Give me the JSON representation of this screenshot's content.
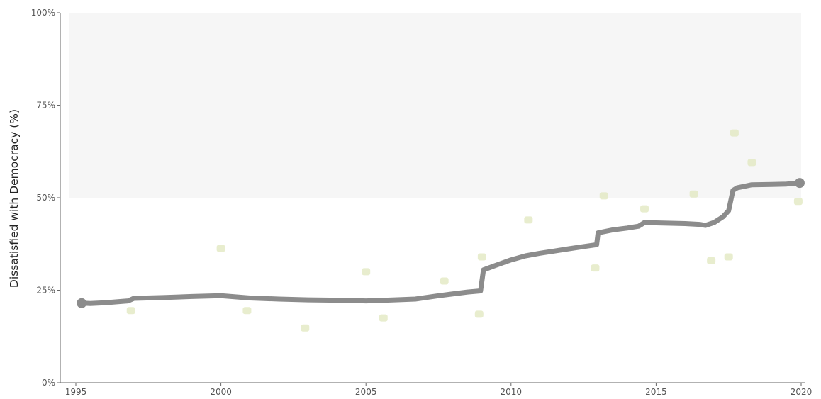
{
  "chart_data": {
    "type": "line",
    "title": "",
    "xlabel": "",
    "ylabel": "Dissatisfied with Democracy (%)",
    "xlim": [
      1995,
      2020
    ],
    "ylim": [
      0,
      100
    ],
    "x_ticks": [
      1995,
      2000,
      2005,
      2010,
      2015,
      2020
    ],
    "y_ticks": [
      0,
      25,
      50,
      75,
      100
    ],
    "y_tick_labels": [
      "0%",
      "25%",
      "50%",
      "75%",
      "100%"
    ],
    "grid": false,
    "legend": "none",
    "shaded_band": {
      "y_from": 50,
      "y_to": 100,
      "color": "#f6f6f6"
    },
    "series": [
      {
        "color": "#8c8c8c",
        "points": [
          [
            1995.2,
            21.5
          ],
          [
            1995.5,
            21.4
          ],
          [
            1996.0,
            21.6
          ],
          [
            1996.6,
            22.0
          ],
          [
            1996.8,
            22.1
          ],
          [
            1997.0,
            22.8
          ],
          [
            1998.0,
            23.0
          ],
          [
            1999.0,
            23.3
          ],
          [
            2000.0,
            23.5
          ],
          [
            2001.0,
            22.9
          ],
          [
            2002.0,
            22.6
          ],
          [
            2003.0,
            22.4
          ],
          [
            2004.0,
            22.3
          ],
          [
            2005.0,
            22.1
          ],
          [
            2006.0,
            22.4
          ],
          [
            2006.7,
            22.6
          ],
          [
            2007.5,
            23.5
          ],
          [
            2008.5,
            24.5
          ],
          [
            2008.95,
            24.8
          ],
          [
            2009.05,
            30.5
          ],
          [
            2009.5,
            31.8
          ],
          [
            2010.0,
            33.2
          ],
          [
            2010.5,
            34.3
          ],
          [
            2011.0,
            35.0
          ],
          [
            2011.5,
            35.6
          ],
          [
            2012.0,
            36.2
          ],
          [
            2012.5,
            36.8
          ],
          [
            2012.95,
            37.3
          ],
          [
            2013.0,
            40.5
          ],
          [
            2013.5,
            41.3
          ],
          [
            2014.0,
            41.8
          ],
          [
            2014.4,
            42.3
          ],
          [
            2014.6,
            43.3
          ],
          [
            2015.0,
            43.2
          ],
          [
            2015.5,
            43.1
          ],
          [
            2016.0,
            43.0
          ],
          [
            2016.5,
            42.8
          ],
          [
            2016.7,
            42.5
          ],
          [
            2017.0,
            43.3
          ],
          [
            2017.3,
            44.8
          ],
          [
            2017.5,
            46.5
          ],
          [
            2017.65,
            52.0
          ],
          [
            2017.8,
            52.7
          ],
          [
            2018.3,
            53.5
          ],
          [
            2019.0,
            53.6
          ],
          [
            2019.5,
            53.7
          ],
          [
            2019.95,
            54.0
          ]
        ],
        "endpoints": [
          [
            1995.2,
            21.5
          ],
          [
            2019.95,
            54.0
          ]
        ]
      }
    ],
    "background_points": {
      "color": "#e2e8c2",
      "points": [
        [
          1996.9,
          19.5
        ],
        [
          2000.0,
          36.3
        ],
        [
          2000.9,
          19.5
        ],
        [
          2002.9,
          14.8
        ],
        [
          2005.0,
          30.0
        ],
        [
          2005.6,
          17.5
        ],
        [
          2007.7,
          27.5
        ],
        [
          2009.0,
          34.0
        ],
        [
          2008.9,
          18.5
        ],
        [
          2010.6,
          44.0
        ],
        [
          2012.9,
          31.0
        ],
        [
          2013.2,
          50.5
        ],
        [
          2014.6,
          47.0
        ],
        [
          2016.3,
          51.0
        ],
        [
          2016.9,
          33.0
        ],
        [
          2017.7,
          67.5
        ],
        [
          2017.5,
          34.0
        ],
        [
          2018.3,
          59.5
        ],
        [
          2019.9,
          49.0
        ]
      ]
    }
  }
}
